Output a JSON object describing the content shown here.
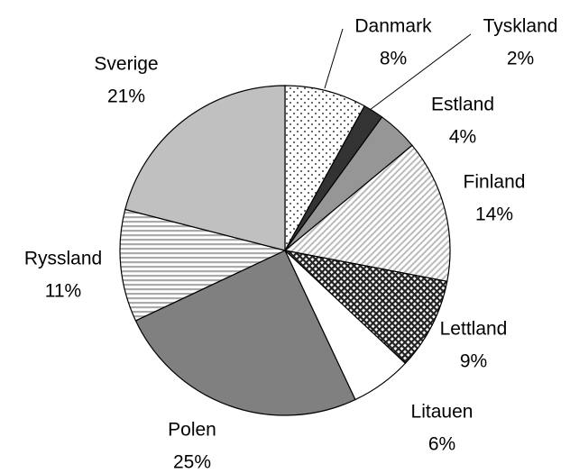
{
  "chart_data": {
    "type": "pie",
    "categories": [
      "Danmark",
      "Tyskland",
      "Estland",
      "Finland",
      "Lettland",
      "Litauen",
      "Polen",
      "Ryssland",
      "Sverige"
    ],
    "values": [
      8,
      2,
      4,
      14,
      9,
      6,
      25,
      11,
      21
    ],
    "value_labels": [
      "8%",
      "2%",
      "4%",
      "14%",
      "9%",
      "6%",
      "25%",
      "11%",
      "21%"
    ],
    "colors": [
      "#ffffff",
      "#333333",
      "#969696",
      "#ffffff",
      "#ffffff",
      "#ffffff",
      "#808080",
      "#ffffff",
      "#c0c0c0"
    ],
    "patterns": [
      "dots",
      null,
      null,
      "diagonal",
      "crosshatch",
      null,
      null,
      "horizontal",
      null
    ]
  }
}
